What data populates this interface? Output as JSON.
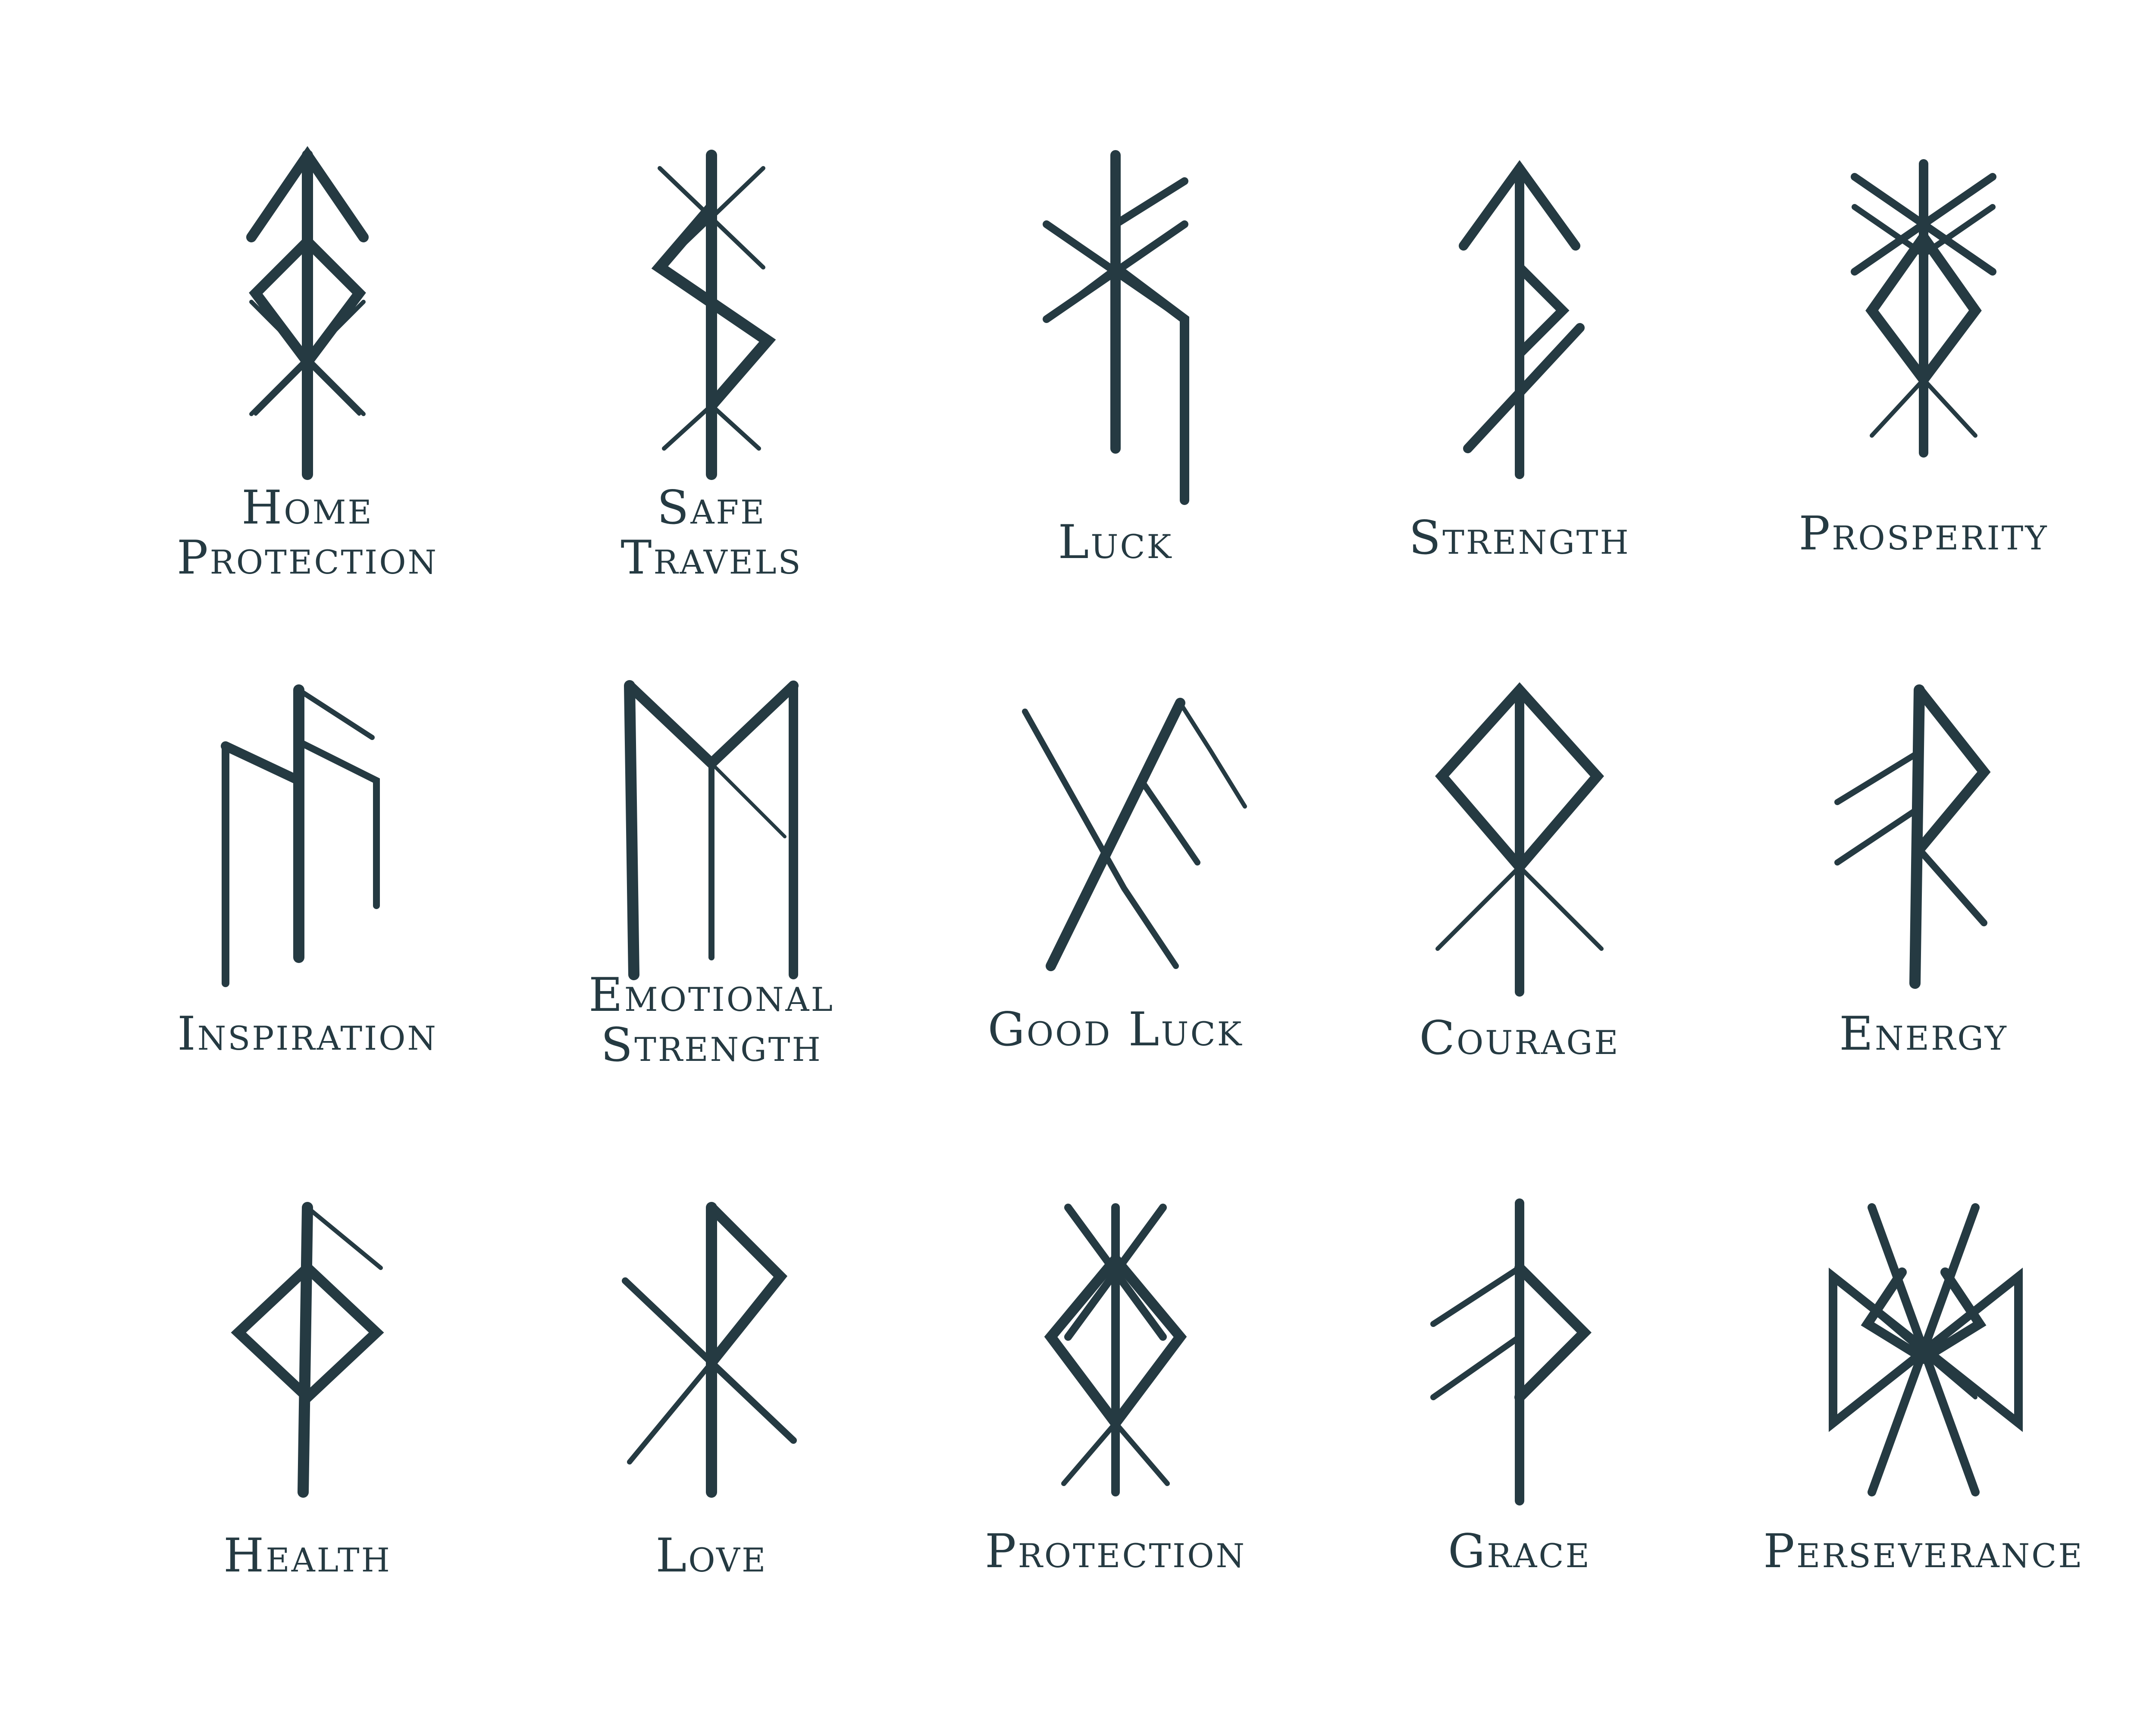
{
  "colors": {
    "ink": "#253a42",
    "background": "#ffffff"
  },
  "runes": [
    {
      "id": "home-protection",
      "lines": [
        "Home",
        "Protection"
      ]
    },
    {
      "id": "safe-travels",
      "lines": [
        "Safe",
        "Travels"
      ]
    },
    {
      "id": "luck",
      "lines": [
        "Luck"
      ]
    },
    {
      "id": "strength",
      "lines": [
        "Strength"
      ]
    },
    {
      "id": "prosperity",
      "lines": [
        "Prosperity"
      ]
    },
    {
      "id": "inspiration",
      "lines": [
        "Inspiration"
      ]
    },
    {
      "id": "emotional-strength",
      "lines": [
        "Emotional",
        "Strength"
      ]
    },
    {
      "id": "good-luck",
      "lines": [
        "Good Luck"
      ]
    },
    {
      "id": "courage",
      "lines": [
        "Courage"
      ]
    },
    {
      "id": "energy",
      "lines": [
        "Energy"
      ]
    },
    {
      "id": "health",
      "lines": [
        "Health"
      ]
    },
    {
      "id": "love",
      "lines": [
        "Love"
      ]
    },
    {
      "id": "protection",
      "lines": [
        "Protection"
      ]
    },
    {
      "id": "grace",
      "lines": [
        "Grace"
      ]
    },
    {
      "id": "perseverance",
      "lines": [
        "Perseverance"
      ]
    }
  ]
}
